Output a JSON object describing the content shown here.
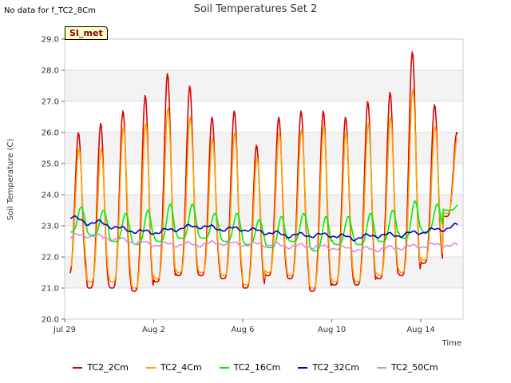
{
  "header": {
    "no_data": "No data for f_TC2_8Cm",
    "badge": "SI_met"
  },
  "colors": {
    "TC2_2Cm": "#dd0000",
    "TC2_4Cm": "#ffa500",
    "TC2_16Cm": "#00ee00",
    "TC2_32Cm": "#0000cc",
    "TC2_50Cm": "#dd88dd"
  },
  "chart_data": {
    "type": "line",
    "title": "Soil Temperatures Set 2",
    "xlabel": "Time",
    "ylabel": "Soil Temperature (C)",
    "ylim": [
      20.0,
      29.0
    ],
    "yticks": [
      "20.0",
      "21.0",
      "22.0",
      "23.0",
      "24.0",
      "25.0",
      "26.0",
      "27.0",
      "28.0",
      "29.0"
    ],
    "xlim_days": [
      0,
      17.9
    ],
    "xticks": [
      {
        "label": "Jul 29",
        "day": 0
      },
      {
        "label": "Aug 2",
        "day": 4
      },
      {
        "label": "Aug 6",
        "day": 8
      },
      {
        "label": "Aug 10",
        "day": 12
      },
      {
        "label": "Aug 14",
        "day": 16
      }
    ],
    "legend_position": "bottom",
    "series": [
      {
        "name": "TC2_2Cm",
        "daily_min": [
          21.4,
          21.0,
          21.0,
          20.9,
          21.2,
          21.4,
          21.4,
          21.3,
          21.0,
          21.4,
          21.3,
          20.9,
          21.1,
          21.1,
          21.3,
          21.4,
          21.8,
          23.3
        ],
        "daily_max": [
          26.0,
          26.3,
          26.7,
          27.2,
          27.9,
          27.5,
          26.5,
          26.7,
          25.6,
          26.5,
          26.7,
          26.7,
          26.5,
          27.0,
          27.3,
          28.6,
          26.9,
          26.0
        ]
      },
      {
        "name": "TC2_4Cm",
        "daily_min": [
          21.6,
          21.2,
          21.2,
          21.0,
          21.3,
          21.5,
          21.5,
          21.4,
          21.1,
          21.5,
          21.4,
          21.0,
          21.2,
          21.2,
          21.4,
          21.5,
          21.9,
          23.4
        ],
        "daily_max": [
          25.5,
          25.5,
          26.2,
          26.3,
          26.8,
          26.5,
          25.8,
          26.0,
          25.2,
          26.0,
          26.1,
          26.2,
          26.0,
          26.3,
          26.5,
          27.4,
          26.2,
          25.8
        ]
      },
      {
        "name": "TC2_16Cm",
        "daily_min": [
          22.8,
          22.7,
          22.5,
          22.4,
          22.5,
          22.6,
          22.6,
          22.5,
          22.4,
          22.3,
          22.5,
          22.2,
          22.4,
          22.4,
          22.5,
          22.6,
          22.8,
          23.5
        ],
        "daily_max": [
          23.6,
          23.5,
          23.4,
          23.5,
          23.7,
          23.7,
          23.4,
          23.4,
          23.2,
          23.3,
          23.4,
          23.3,
          23.3,
          23.4,
          23.5,
          23.8,
          23.7,
          23.7
        ]
      },
      {
        "name": "TC2_32Cm",
        "x_days": [
          0.2,
          1.0,
          1.6,
          2.5,
          3.5,
          4.2,
          5.0,
          6.0,
          7.0,
          8.0,
          9.0,
          10.0,
          11.0,
          12.0,
          13.0,
          14.0,
          15.0,
          16.0,
          17.0,
          17.6
        ],
        "values": [
          23.3,
          23.1,
          23.1,
          22.9,
          22.8,
          22.8,
          22.9,
          23.0,
          22.9,
          22.9,
          22.8,
          22.7,
          22.7,
          22.7,
          22.6,
          22.7,
          22.7,
          22.8,
          22.9,
          23.0
        ]
      },
      {
        "name": "TC2_50Cm",
        "x_days": [
          0.2,
          1.0,
          2.0,
          3.0,
          4.0,
          5.0,
          6.0,
          7.0,
          8.0,
          9.0,
          10.0,
          11.0,
          12.0,
          13.0,
          14.0,
          15.0,
          16.0,
          17.0,
          17.6
        ],
        "values": [
          22.65,
          22.7,
          22.6,
          22.5,
          22.4,
          22.4,
          22.4,
          22.45,
          22.4,
          22.4,
          22.35,
          22.35,
          22.3,
          22.25,
          22.25,
          22.3,
          22.35,
          22.4,
          22.35
        ]
      }
    ]
  }
}
